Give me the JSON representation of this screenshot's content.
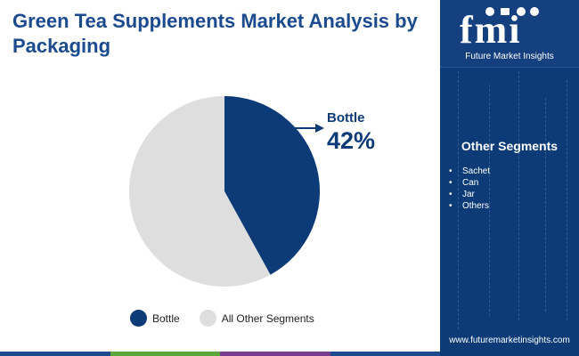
{
  "title": "Green Tea Supplements Market Analysis by Packaging",
  "chart_data": {
    "type": "pie",
    "categories": [
      "Bottle",
      "All Other Segments"
    ],
    "values": [
      42,
      58
    ],
    "colors": [
      "#0c3b78",
      "#dedede"
    ],
    "callout": {
      "label": "Bottle",
      "value": "42%"
    }
  },
  "sidebar": {
    "logo_text": "fmi",
    "logo_subtitle": "Future Market Insights",
    "segments_heading": "Other Segments",
    "segments": [
      "Sachet",
      "Can",
      "Jar",
      "Others"
    ],
    "website": "www.futuremarketinsights.com"
  },
  "bottom_bar_colors": [
    "#1b4a8f",
    "#5aa83c",
    "#7a3e8e",
    "#1b4a8f"
  ]
}
